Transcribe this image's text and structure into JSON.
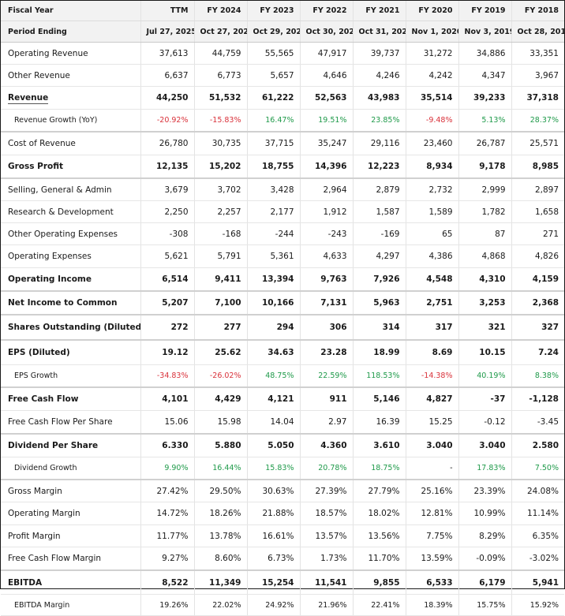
{
  "header": {
    "label": "Fiscal Year",
    "columns": [
      "TTM",
      "FY 2024",
      "FY 2023",
      "FY 2022",
      "FY 2021",
      "FY 2020",
      "FY 2019",
      "FY 2018"
    ]
  },
  "period": {
    "label": "Period Ending",
    "columns": [
      "Jul 27, 2025",
      "Oct 27, 2024",
      "Oct 29, 2023",
      "Oct 30, 2022",
      "Oct 31, 2021",
      "Nov 1, 2020",
      "Nov 3, 2019",
      "Oct 28, 2018"
    ]
  },
  "colors": {
    "negative": "#d9313a",
    "positive": "#1f9a4a",
    "header_bg": "#f2f2f2"
  },
  "rows": [
    {
      "label": "Operating Revenue",
      "values": [
        "37,613",
        "44,759",
        "55,565",
        "47,917",
        "39,737",
        "31,272",
        "34,886",
        "33,351"
      ]
    },
    {
      "label": "Other Revenue",
      "values": [
        "6,637",
        "6,773",
        "5,657",
        "4,646",
        "4,246",
        "4,242",
        "4,347",
        "3,967"
      ]
    },
    {
      "label": "Revenue",
      "values": [
        "44,250",
        "51,532",
        "61,222",
        "52,563",
        "43,983",
        "35,514",
        "39,233",
        "37,318"
      ]
    },
    {
      "label": "Revenue Growth (YoY)",
      "values": [
        "-20.92%",
        "-15.83%",
        "16.47%",
        "19.51%",
        "23.85%",
        "-9.48%",
        "5.13%",
        "28.37%"
      ]
    },
    {
      "label": "Cost of Revenue",
      "values": [
        "26,780",
        "30,735",
        "37,715",
        "35,247",
        "29,116",
        "23,460",
        "26,787",
        "25,571"
      ]
    },
    {
      "label": "Gross Profit",
      "values": [
        "12,135",
        "15,202",
        "18,755",
        "14,396",
        "12,223",
        "8,934",
        "9,178",
        "8,985"
      ]
    },
    {
      "label": "Selling, General & Admin",
      "values": [
        "3,679",
        "3,702",
        "3,428",
        "2,964",
        "2,879",
        "2,732",
        "2,999",
        "2,897"
      ]
    },
    {
      "label": "Research & Development",
      "values": [
        "2,250",
        "2,257",
        "2,177",
        "1,912",
        "1,587",
        "1,589",
        "1,782",
        "1,658"
      ]
    },
    {
      "label": "Other Operating Expenses",
      "values": [
        "-308",
        "-168",
        "-244",
        "-243",
        "-169",
        "65",
        "87",
        "271"
      ]
    },
    {
      "label": "Operating Expenses",
      "values": [
        "5,621",
        "5,791",
        "5,361",
        "4,633",
        "4,297",
        "4,386",
        "4,868",
        "4,826"
      ]
    },
    {
      "label": "Operating Income",
      "values": [
        "6,514",
        "9,411",
        "13,394",
        "9,763",
        "7,926",
        "4,548",
        "4,310",
        "4,159"
      ]
    },
    {
      "label": "Net Income to Common",
      "values": [
        "5,207",
        "7,100",
        "10,166",
        "7,131",
        "5,963",
        "2,751",
        "3,253",
        "2,368"
      ]
    },
    {
      "label": "Shares Outstanding (Diluted)",
      "values": [
        "272",
        "277",
        "294",
        "306",
        "314",
        "317",
        "321",
        "327"
      ]
    },
    {
      "label": "EPS (Diluted)",
      "values": [
        "19.12",
        "25.62",
        "34.63",
        "23.28",
        "18.99",
        "8.69",
        "10.15",
        "7.24"
      ]
    },
    {
      "label": "EPS Growth",
      "values": [
        "-34.83%",
        "-26.02%",
        "48.75%",
        "22.59%",
        "118.53%",
        "-14.38%",
        "40.19%",
        "8.38%"
      ]
    },
    {
      "label": "Free Cash Flow",
      "values": [
        "4,101",
        "4,429",
        "4,121",
        "911",
        "5,146",
        "4,827",
        "-37",
        "-1,128"
      ]
    },
    {
      "label": "Free Cash Flow Per Share",
      "values": [
        "15.06",
        "15.98",
        "14.04",
        "2.97",
        "16.39",
        "15.25",
        "-0.12",
        "-3.45"
      ]
    },
    {
      "label": "Dividend Per Share",
      "values": [
        "6.330",
        "5.880",
        "5.050",
        "4.360",
        "3.610",
        "3.040",
        "3.040",
        "2.580"
      ]
    },
    {
      "label": "Dividend Growth",
      "values": [
        "9.90%",
        "16.44%",
        "15.83%",
        "20.78%",
        "18.75%",
        "-",
        "17.83%",
        "7.50%"
      ]
    },
    {
      "label": "Gross Margin",
      "values": [
        "27.42%",
        "29.50%",
        "30.63%",
        "27.39%",
        "27.79%",
        "25.16%",
        "23.39%",
        "24.08%"
      ]
    },
    {
      "label": "Operating Margin",
      "values": [
        "14.72%",
        "18.26%",
        "21.88%",
        "18.57%",
        "18.02%",
        "12.81%",
        "10.99%",
        "11.14%"
      ]
    },
    {
      "label": "Profit Margin",
      "values": [
        "11.77%",
        "13.78%",
        "16.61%",
        "13.57%",
        "13.56%",
        "7.75%",
        "8.29%",
        "6.35%"
      ]
    },
    {
      "label": "Free Cash Flow Margin",
      "values": [
        "9.27%",
        "8.60%",
        "6.73%",
        "1.73%",
        "11.70%",
        "13.59%",
        "-0.09%",
        "-3.02%"
      ]
    },
    {
      "label": "EBITDA",
      "values": [
        "8,522",
        "11,349",
        "15,254",
        "11,541",
        "9,855",
        "6,533",
        "6,179",
        "5,941"
      ]
    },
    {
      "label": "EBITDA Margin",
      "values": [
        "19.26%",
        "22.02%",
        "24.92%",
        "21.96%",
        "22.41%",
        "18.39%",
        "15.75%",
        "15.92%"
      ]
    }
  ]
}
